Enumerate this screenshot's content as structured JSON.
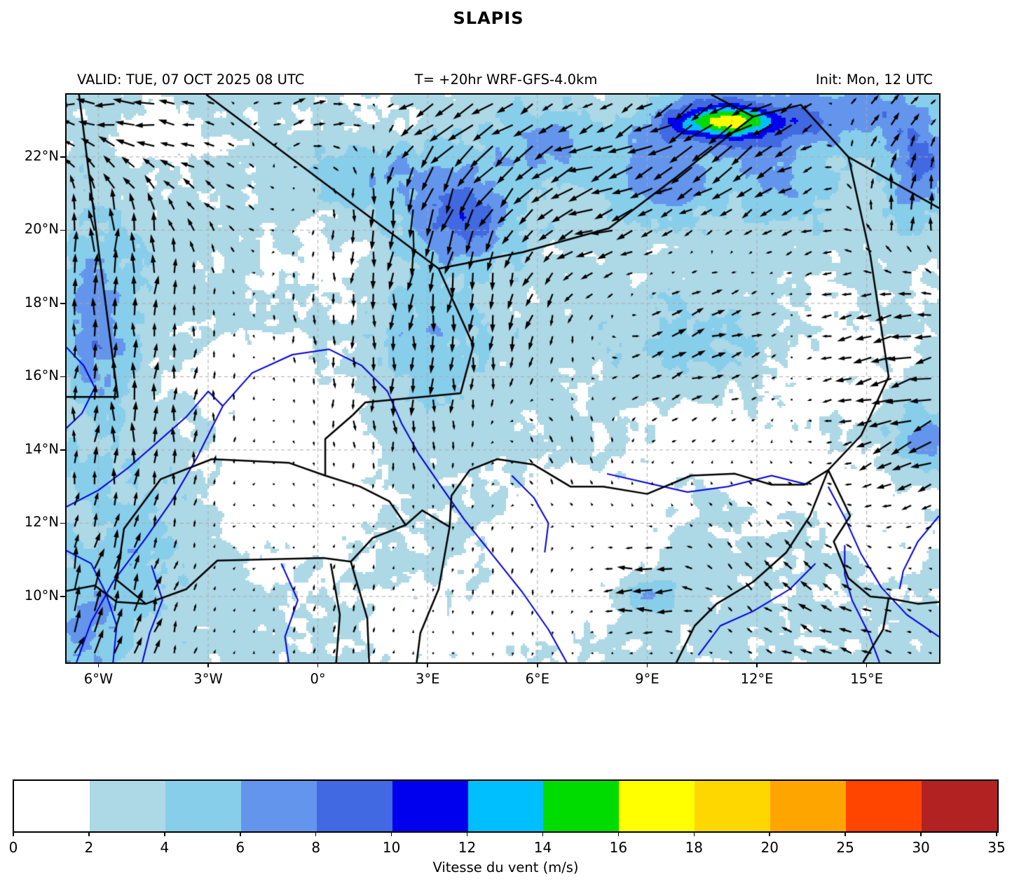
{
  "title": "SLAPIS",
  "header": {
    "valid": "VALID: TUE, 07 OCT 2025 08 UTC",
    "model": "T= +20hr WRF-GFS-4.0km",
    "init": "Init: Mon, 12 UTC"
  },
  "chart_data": {
    "type": "heatmap",
    "subtype": "wind-speed-shading-with-quiver-overlay",
    "title": "SLAPIS",
    "xlabel": "",
    "ylabel": "",
    "x_ticks": [
      "6°W",
      "3°W",
      "0°",
      "3°E",
      "6°E",
      "9°E",
      "12°E",
      "15°E"
    ],
    "x_tick_lons": [
      -6,
      -3,
      0,
      3,
      6,
      9,
      12,
      15
    ],
    "y_ticks": [
      "22°N",
      "20°N",
      "18°N",
      "16°N",
      "14°N",
      "12°N",
      "10°N"
    ],
    "y_tick_lats": [
      22,
      20,
      18,
      16,
      14,
      12,
      10
    ],
    "extent": {
      "lon_min": -6.87,
      "lon_max": 16.98,
      "lat_min": 8.2,
      "lat_max": 23.7
    },
    "grid": true,
    "colorbar": {
      "label": "Vitesse du vent (m/s)",
      "levels": [
        0,
        2,
        4,
        6,
        8,
        10,
        12,
        14,
        16,
        18,
        20,
        25,
        30,
        35
      ],
      "colors": [
        "#ffffff",
        "#add8e6",
        "#87ceeb",
        "#6495ed",
        "#4169e1",
        "#0000ee",
        "#00bfff",
        "#00dc00",
        "#ffff00",
        "#ffd700",
        "#ffa500",
        "#ff4500",
        "#b22222"
      ]
    },
    "styles": {
      "arrow_color": "#000000",
      "border_color": "#000000",
      "river_color": "#0000dd",
      "grid_color": "#aaaaaa",
      "frame_color": "#000000"
    },
    "shading_base": {
      "mean": 2.55,
      "noise_amp": 1.55,
      "noise_scale": 2.2
    },
    "shading_blobs": [
      [
        -6.0,
        17.5,
        1.0,
        2.6,
        5.0
      ],
      [
        -5.2,
        11.5,
        1.8,
        2.5,
        2.2
      ],
      [
        -6.5,
        9.0,
        1.6,
        1.5,
        3.5
      ],
      [
        4.1,
        20.4,
        1.4,
        1.2,
        6.0
      ],
      [
        3.0,
        17.0,
        1.5,
        2.6,
        3.0
      ],
      [
        1.8,
        21.6,
        2.0,
        1.4,
        3.0
      ],
      [
        6.3,
        22.4,
        1.9,
        1.2,
        3.5
      ],
      [
        11.3,
        22.9,
        2.7,
        1.0,
        6.5
      ],
      [
        11.2,
        23.0,
        1.4,
        0.4,
        8.5
      ],
      [
        9.4,
        21.2,
        1.4,
        1.0,
        4.5
      ],
      [
        12.7,
        21.2,
        1.5,
        1.1,
        3.0
      ],
      [
        16.4,
        21.8,
        1.0,
        1.5,
        5.5
      ],
      [
        16.6,
        14.2,
        0.9,
        0.8,
        5.0
      ],
      [
        9.0,
        10.1,
        0.9,
        0.5,
        4.0
      ],
      [
        10.3,
        16.9,
        2.3,
        1.3,
        2.2
      ],
      [
        14.8,
        23.3,
        1.5,
        0.8,
        4.0
      ],
      [
        -0.8,
        13.2,
        2.3,
        1.9,
        -3.0
      ],
      [
        -1.6,
        16.1,
        1.8,
        1.2,
        -2.2
      ],
      [
        7.0,
        11.6,
        2.1,
        1.6,
        -3.0
      ],
      [
        10.9,
        14.3,
        1.7,
        1.2,
        -2.6
      ],
      [
        5.9,
        9.6,
        1.6,
        1.2,
        -2.2
      ],
      [
        13.9,
        16.3,
        1.5,
        1.5,
        -2.0
      ],
      [
        -4.1,
        22.7,
        1.3,
        0.9,
        -2.0
      ],
      [
        1.6,
        22.9,
        1.2,
        0.8,
        -2.2
      ],
      [
        8.3,
        23.3,
        1.2,
        0.8,
        -2.0
      ],
      [
        12.9,
        13.1,
        1.4,
        1.1,
        -2.0
      ],
      [
        15.6,
        12.1,
        1.6,
        1.3,
        -1.8
      ],
      [
        2.8,
        9.1,
        1.6,
        1.1,
        -2.0
      ],
      [
        0.3,
        19.0,
        1.6,
        1.3,
        -1.5
      ]
    ],
    "wind_features": [
      [
        -5.2,
        23.2,
        2.2,
        -7.0,
        -0.5
      ],
      [
        -0.3,
        23.35,
        1.8,
        4.5,
        1.0
      ],
      [
        -5.8,
        19.5,
        2.6,
        0.3,
        7.5
      ],
      [
        -5.1,
        14.5,
        2.8,
        0.3,
        6.0
      ],
      [
        -6.3,
        9.3,
        2.4,
        2.8,
        8.5
      ],
      [
        -2.0,
        12.2,
        2.2,
        0.2,
        -1.0
      ],
      [
        2.9,
        20.2,
        2.3,
        -0.8,
        -8.5
      ],
      [
        2.4,
        15.6,
        2.2,
        0.2,
        -5.0
      ],
      [
        4.9,
        22.4,
        1.9,
        -5.5,
        -4.0
      ],
      [
        7.6,
        21.2,
        2.1,
        -6.5,
        -2.0
      ],
      [
        11.2,
        22.8,
        2.6,
        -8.5,
        -5.5
      ],
      [
        15.3,
        23.2,
        1.5,
        3.5,
        3.5
      ],
      [
        16.3,
        20.8,
        1.7,
        1.0,
        5.5
      ],
      [
        10.2,
        17.2,
        2.4,
        5.5,
        2.0
      ],
      [
        15.9,
        16.6,
        2.2,
        -7.0,
        -1.5
      ],
      [
        16.6,
        13.9,
        1.7,
        -6.0,
        -3.0
      ],
      [
        9.1,
        10.15,
        1.1,
        -7.5,
        -0.3
      ],
      [
        5.1,
        10.6,
        2.1,
        -0.3,
        -1.8
      ],
      [
        12.6,
        10.9,
        2.4,
        -2.0,
        2.0
      ],
      [
        6.6,
        14.0,
        1.8,
        -1.0,
        2.4
      ],
      [
        0.6,
        9.6,
        1.9,
        0.4,
        2.4
      ],
      [
        -2.6,
        21.2,
        1.9,
        -2.5,
        1.0
      ],
      [
        5.6,
        17.6,
        2.1,
        -1.0,
        -4.0
      ],
      [
        8.2,
        18.8,
        1.8,
        -2.5,
        -0.8
      ],
      [
        13.6,
        19.6,
        1.8,
        -2.0,
        -0.5
      ],
      [
        -0.4,
        17.6,
        1.8,
        0.2,
        -2.0
      ],
      [
        14.2,
        8.9,
        1.9,
        -3.5,
        1.0
      ],
      [
        3.3,
        23.4,
        1.5,
        -4.0,
        -1.0
      ]
    ],
    "borders": [
      [
        [
          -6.87,
          15.45
        ],
        [
          -5.47,
          15.45
        ],
        [
          -6.0,
          19.5
        ],
        [
          -6.53,
          23.7
        ]
      ],
      [
        [
          -3.05,
          23.7
        ],
        [
          3.3,
          18.95
        ],
        [
          5.6,
          19.4
        ],
        [
          7.95,
          20.05
        ],
        [
          9.8,
          21.45
        ],
        [
          11.9,
          23.1
        ]
      ],
      [
        [
          10.75,
          23.7
        ],
        [
          11.9,
          23.1
        ],
        [
          13.2,
          23.42
        ],
        [
          14.5,
          22.0
        ],
        [
          16.98,
          20.6
        ]
      ],
      [
        [
          14.5,
          22.0
        ],
        [
          15.1,
          19.3
        ],
        [
          15.45,
          17.0
        ],
        [
          15.6,
          16.0
        ],
        [
          14.85,
          14.4
        ],
        [
          13.95,
          13.45
        ]
      ],
      [
        [
          13.95,
          13.45
        ],
        [
          13.3,
          13.05
        ],
        [
          12.4,
          13.05
        ],
        [
          11.4,
          13.35
        ],
        [
          10.2,
          13.3
        ],
        [
          9.0,
          12.8
        ],
        [
          7.8,
          13.0
        ],
        [
          6.9,
          13.0
        ],
        [
          5.9,
          13.6
        ],
        [
          4.9,
          13.75
        ],
        [
          4.15,
          13.45
        ],
        [
          3.65,
          12.75
        ],
        [
          3.6,
          11.9
        ],
        [
          2.85,
          12.35
        ],
        [
          2.4,
          11.95
        ],
        [
          1.95,
          12.6
        ],
        [
          1.15,
          13.0
        ],
        [
          0.2,
          13.3
        ],
        [
          0.2,
          14.3
        ],
        [
          0.95,
          14.95
        ]
      ],
      [
        [
          0.95,
          14.95
        ],
        [
          1.3,
          15.3
        ],
        [
          3.9,
          15.55
        ],
        [
          4.25,
          16.85
        ],
        [
          3.3,
          18.95
        ]
      ],
      [
        [
          0.2,
          13.3
        ],
        [
          -0.8,
          13.65
        ],
        [
          -2.9,
          13.75
        ],
        [
          -4.3,
          13.2
        ],
        [
          -5.3,
          11.85
        ],
        [
          -5.5,
          10.45
        ],
        [
          -4.7,
          9.8
        ]
      ],
      [
        [
          -6.87,
          10.15
        ],
        [
          -6.1,
          10.3
        ],
        [
          -5.5,
          9.85
        ],
        [
          -4.7,
          9.8
        ],
        [
          -3.6,
          10.2
        ],
        [
          -2.75,
          10.98
        ],
        [
          0.15,
          11.05
        ],
        [
          0.9,
          10.95
        ]
      ],
      [
        [
          0.9,
          10.95
        ],
        [
          1.5,
          11.6
        ],
        [
          2.4,
          11.95
        ]
      ],
      [
        [
          0.35,
          10.9
        ],
        [
          0.6,
          9.5
        ],
        [
          0.5,
          8.2
        ]
      ],
      [
        [
          0.9,
          10.95
        ],
        [
          1.35,
          9.4
        ],
        [
          1.4,
          8.2
        ]
      ],
      [
        [
          3.6,
          11.9
        ],
        [
          3.3,
          10.2
        ],
        [
          2.8,
          9.0
        ],
        [
          2.7,
          8.2
        ]
      ],
      [
        [
          13.95,
          13.45
        ],
        [
          14.55,
          12.2
        ],
        [
          14.1,
          11.5
        ],
        [
          14.5,
          10.5
        ],
        [
          15.1,
          10.0
        ],
        [
          15.6,
          9.95
        ],
        [
          15.45,
          9.1
        ],
        [
          14.9,
          8.2
        ]
      ],
      [
        [
          13.95,
          13.45
        ],
        [
          13.45,
          12.2
        ],
        [
          12.8,
          11.2
        ],
        [
          11.9,
          10.4
        ],
        [
          10.9,
          9.8
        ],
        [
          10.3,
          9.2
        ],
        [
          9.8,
          8.2
        ]
      ],
      [
        [
          15.6,
          9.95
        ],
        [
          16.4,
          9.8
        ],
        [
          16.98,
          9.85
        ]
      ]
    ],
    "rivers": [
      [
        [
          -6.6,
          8.2
        ],
        [
          -6.2,
          9.3
        ],
        [
          -5.6,
          10.4
        ],
        [
          -4.7,
          11.6
        ],
        [
          -4.0,
          12.6
        ],
        [
          -3.3,
          13.8
        ],
        [
          -2.6,
          15.2
        ],
        [
          -1.8,
          16.1
        ],
        [
          -0.7,
          16.6
        ],
        [
          0.3,
          16.75
        ],
        [
          1.2,
          16.3
        ],
        [
          1.9,
          15.6
        ],
        [
          2.3,
          14.7
        ],
        [
          2.75,
          13.9
        ],
        [
          3.3,
          13.1
        ],
        [
          4.0,
          12.1
        ],
        [
          4.8,
          11.1
        ],
        [
          5.6,
          10.1
        ],
        [
          6.3,
          9.1
        ],
        [
          6.8,
          8.2
        ]
      ],
      [
        [
          -6.87,
          12.45
        ],
        [
          -6.0,
          12.9
        ],
        [
          -5.2,
          13.5
        ],
        [
          -4.4,
          14.2
        ],
        [
          -3.6,
          14.9
        ],
        [
          -3.0,
          15.6
        ],
        [
          -2.6,
          15.2
        ]
      ],
      [
        [
          -6.87,
          16.8
        ],
        [
          -6.4,
          16.3
        ],
        [
          -6.1,
          15.7
        ],
        [
          -6.45,
          15.0
        ],
        [
          -6.87,
          14.6
        ]
      ],
      [
        [
          -6.87,
          11.25
        ],
        [
          -6.2,
          10.9
        ],
        [
          -5.8,
          10.1
        ],
        [
          -5.5,
          9.2
        ],
        [
          -5.6,
          8.2
        ]
      ],
      [
        [
          -4.55,
          10.85
        ],
        [
          -4.25,
          9.9
        ],
        [
          -4.6,
          9.0
        ],
        [
          -4.8,
          8.2
        ]
      ],
      [
        [
          -1.0,
          10.9
        ],
        [
          -0.55,
          9.9
        ],
        [
          -0.9,
          8.9
        ],
        [
          -0.8,
          8.2
        ]
      ],
      [
        [
          7.9,
          13.35
        ],
        [
          9.0,
          13.1
        ],
        [
          10.1,
          12.85
        ],
        [
          11.2,
          13.0
        ],
        [
          12.4,
          13.3
        ],
        [
          13.4,
          13.05
        ]
      ],
      [
        [
          16.98,
          8.9
        ],
        [
          16.1,
          9.5
        ],
        [
          15.4,
          10.25
        ],
        [
          14.85,
          11.15
        ],
        [
          14.4,
          12.15
        ],
        [
          13.95,
          13.0
        ]
      ],
      [
        [
          15.35,
          8.2
        ],
        [
          15.05,
          9.0
        ],
        [
          14.6,
          9.9
        ],
        [
          14.4,
          10.6
        ],
        [
          14.4,
          11.4
        ]
      ],
      [
        [
          10.4,
          8.4
        ],
        [
          11.0,
          9.2
        ],
        [
          11.9,
          9.6
        ],
        [
          12.9,
          10.2
        ],
        [
          13.6,
          10.9
        ]
      ],
      [
        [
          5.3,
          13.3
        ],
        [
          5.9,
          12.7
        ],
        [
          6.3,
          12.0
        ],
        [
          6.2,
          11.2
        ]
      ],
      [
        [
          16.98,
          12.2
        ],
        [
          16.4,
          11.5
        ],
        [
          16.0,
          10.7
        ],
        [
          15.9,
          10.2
        ]
      ]
    ]
  }
}
